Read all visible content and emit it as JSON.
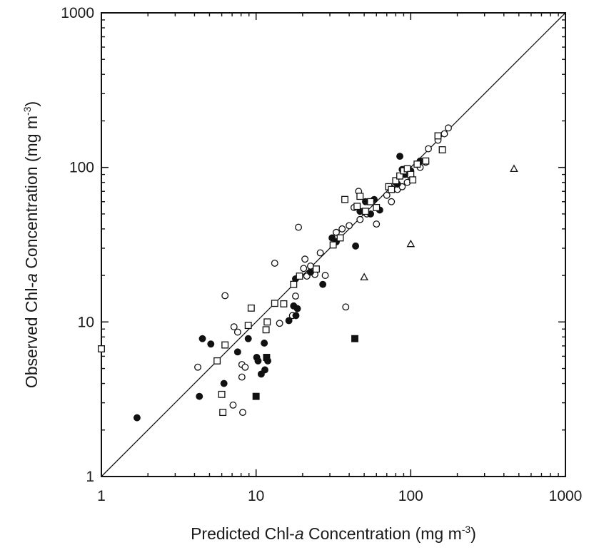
{
  "chart_data": {
    "type": "scatter",
    "title": "",
    "x_scale": "log",
    "y_scale": "log",
    "xlim": [
      1,
      1000
    ],
    "ylim": [
      1,
      1000
    ],
    "grid": false,
    "legend": "none",
    "xlabel": {
      "pre": "Predicted Chl-",
      "italic": "a",
      "post": " Concentration (mg m",
      "sup": "-3",
      "close": ")"
    },
    "ylabel": {
      "pre": "Observed Chl-",
      "italic": "a",
      "post": " Concentration (mg m",
      "sup": "-3",
      "close": ")"
    },
    "x_ticks": [
      {
        "value": 1,
        "label": "1"
      },
      {
        "value": 10,
        "label": "10"
      },
      {
        "value": 100,
        "label": "100"
      },
      {
        "value": 1000,
        "label": "1000"
      }
    ],
    "y_ticks": [
      {
        "value": 1,
        "label": "1"
      },
      {
        "value": 10,
        "label": "10"
      },
      {
        "value": 100,
        "label": "100"
      },
      {
        "value": 1000,
        "label": "1000"
      }
    ],
    "reference_line": {
      "type": "1:1",
      "from": [
        1,
        1
      ],
      "to": [
        1000,
        1000
      ]
    },
    "series": [
      {
        "marker": "open-circle",
        "points": [
          [
            4.2,
            5.1
          ],
          [
            6.3,
            14.8
          ],
          [
            7.2,
            9.3
          ],
          [
            7.6,
            8.6
          ],
          [
            8.1,
            5.3
          ],
          [
            8.5,
            5.1
          ],
          [
            8.1,
            4.4
          ],
          [
            8.2,
            2.6
          ],
          [
            7.1,
            2.9
          ],
          [
            13.2,
            24
          ],
          [
            14.2,
            9.8
          ],
          [
            17.2,
            11
          ],
          [
            18,
            14.7
          ],
          [
            18.8,
            41
          ],
          [
            20.3,
            22.2
          ],
          [
            20.7,
            25.5
          ],
          [
            21.3,
            19.8
          ],
          [
            22.5,
            23
          ],
          [
            24,
            20.3
          ],
          [
            26,
            28
          ],
          [
            28,
            20
          ],
          [
            33,
            38
          ],
          [
            36,
            40
          ],
          [
            38,
            12.5
          ],
          [
            40,
            42
          ],
          [
            43,
            55
          ],
          [
            47,
            46
          ],
          [
            46,
            70
          ],
          [
            52,
            50
          ],
          [
            55,
            60
          ],
          [
            60,
            43
          ],
          [
            70,
            66
          ],
          [
            75,
            60
          ],
          [
            82,
            72
          ],
          [
            88,
            75
          ],
          [
            95,
            80
          ],
          [
            100,
            87
          ],
          [
            115,
            100
          ],
          [
            125,
            108
          ],
          [
            130,
            132
          ],
          [
            150,
            150
          ],
          [
            165,
            165
          ],
          [
            175,
            180
          ]
        ]
      },
      {
        "marker": "filled-circle",
        "points": [
          [
            1.7,
            2.4
          ],
          [
            4.3,
            3.3
          ],
          [
            4.5,
            7.8
          ],
          [
            5.1,
            7.2
          ],
          [
            6.2,
            4
          ],
          [
            7.6,
            6.4
          ],
          [
            8.9,
            7.8
          ],
          [
            10.1,
            5.9
          ],
          [
            10.3,
            5.6
          ],
          [
            10.8,
            4.6
          ],
          [
            11.4,
            4.9
          ],
          [
            11.3,
            7.3
          ],
          [
            11.9,
            5.6
          ],
          [
            16.3,
            10.2
          ],
          [
            17.5,
            12.7
          ],
          [
            18.1,
            11
          ],
          [
            18.5,
            12.2
          ],
          [
            18,
            19
          ],
          [
            22.5,
            21
          ],
          [
            27,
            17.5
          ],
          [
            31,
            35
          ],
          [
            33,
            33
          ],
          [
            44,
            31
          ],
          [
            47,
            52
          ],
          [
            51,
            60
          ],
          [
            55,
            50
          ],
          [
            58,
            62
          ],
          [
            63,
            53
          ],
          [
            82,
            78
          ],
          [
            85,
            118
          ],
          [
            88,
            97
          ],
          [
            92,
            90
          ],
          [
            100,
            95
          ],
          [
            115,
            110
          ]
        ]
      },
      {
        "marker": "open-square",
        "points": [
          [
            1,
            6.7
          ],
          [
            5.6,
            5.6
          ],
          [
            6,
            3.4
          ],
          [
            6.1,
            2.6
          ],
          [
            6.3,
            7.1
          ],
          [
            8.9,
            9.5
          ],
          [
            9.3,
            12.3
          ],
          [
            11.8,
            10
          ],
          [
            11.6,
            8.9
          ],
          [
            13.2,
            13.2
          ],
          [
            15.1,
            13.1
          ],
          [
            17.5,
            17.5
          ],
          [
            19.1,
            19.8
          ],
          [
            24.5,
            22
          ],
          [
            31.5,
            31.5
          ],
          [
            35,
            35
          ],
          [
            37.5,
            62
          ],
          [
            45,
            56
          ],
          [
            47,
            65
          ],
          [
            51,
            52
          ],
          [
            55,
            60
          ],
          [
            60,
            55
          ],
          [
            72,
            75
          ],
          [
            75,
            72
          ],
          [
            80,
            82
          ],
          [
            85,
            88
          ],
          [
            90,
            95
          ],
          [
            95,
            98
          ],
          [
            100,
            90
          ],
          [
            103,
            83
          ],
          [
            110,
            105
          ],
          [
            125,
            110
          ],
          [
            150,
            160
          ],
          [
            160,
            130
          ]
        ]
      },
      {
        "marker": "filled-square",
        "points": [
          [
            10,
            3.3
          ],
          [
            11.7,
            5.9
          ],
          [
            43.5,
            7.8
          ]
        ]
      },
      {
        "marker": "open-triangle",
        "points": [
          [
            50,
            19.5
          ],
          [
            100,
            32
          ],
          [
            465,
            98
          ]
        ]
      }
    ]
  }
}
